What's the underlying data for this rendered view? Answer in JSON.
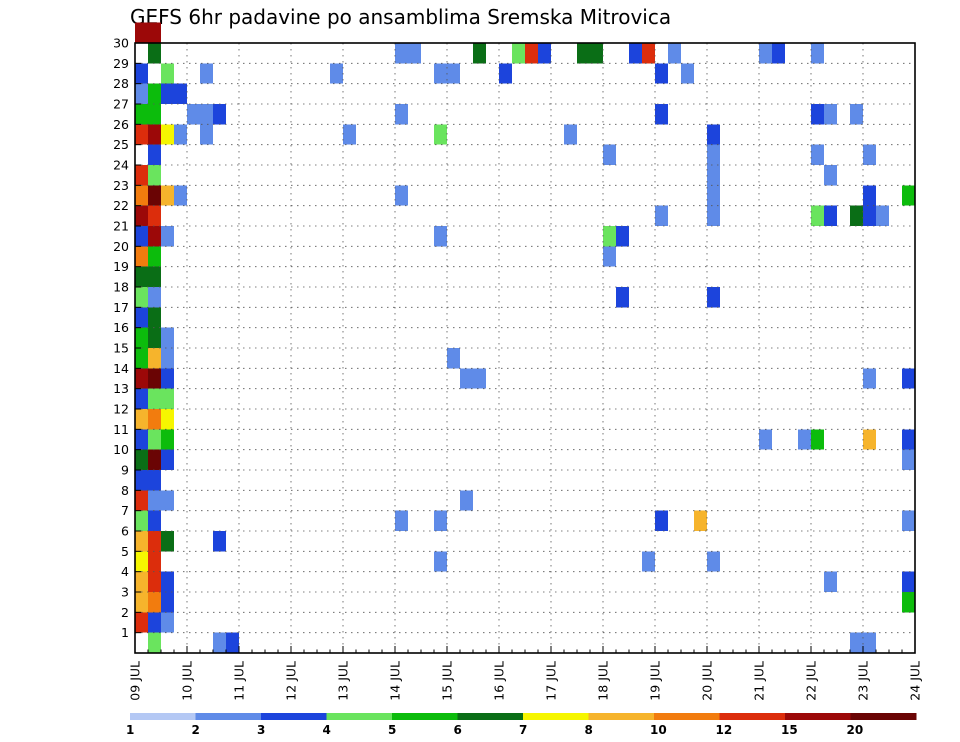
{
  "chart_data": {
    "type": "heatmap",
    "title": "GEFS 6hr padavine po ansamblima Sremska Mitrovica",
    "xlabel": "",
    "ylabel": "",
    "x_tick_labels": [
      "09 JUL",
      "10 JUL",
      "11 JUL",
      "12 JUL",
      "13 JUL",
      "14 JUL",
      "15 JUL",
      "16 JUL",
      "17 JUL",
      "18 JUL",
      "19 JUL",
      "20 JUL",
      "21 JUL",
      "22 JUL",
      "23 JUL",
      "24 JUL"
    ],
    "y_tick_labels": [
      "1",
      "2",
      "3",
      "4",
      "5",
      "6",
      "7",
      "8",
      "9",
      "10",
      "11",
      "12",
      "13",
      "14",
      "15",
      "16",
      "17",
      "18",
      "19",
      "20",
      "21",
      "22",
      "23",
      "24",
      "25",
      "26",
      "27",
      "28",
      "29",
      "30"
    ],
    "x_unit": "6-hour step from 09 JUL 00Z",
    "y_unit": "ensemble member",
    "xlim": [
      0,
      60
    ],
    "ylim": [
      0,
      30
    ],
    "grid": true,
    "colorbar": {
      "labels": [
        "1",
        "2",
        "3",
        "4",
        "5",
        "6",
        "7",
        "8",
        "10",
        "12",
        "15",
        "20"
      ],
      "colors": [
        "#b4c8f4",
        "#5f8be8",
        "#1c44dc",
        "#6ae45e",
        "#0cbc0c",
        "#0a6e16",
        "#f6f600",
        "#f6b42c",
        "#f27c0e",
        "#dc2d0c",
        "#9c0808",
        "#6a0404"
      ]
    },
    "cells": [
      [
        0,
        30,
        10
      ],
      [
        1,
        30,
        10
      ],
      [
        1,
        29,
        5
      ],
      [
        20,
        29,
        1
      ],
      [
        21,
        29,
        1
      ],
      [
        26,
        29,
        5
      ],
      [
        29,
        29,
        3
      ],
      [
        30,
        29,
        9
      ],
      [
        31,
        29,
        2
      ],
      [
        34,
        29,
        5
      ],
      [
        35,
        29,
        5
      ],
      [
        38,
        29,
        2
      ],
      [
        39,
        29,
        9
      ],
      [
        41,
        29,
        1
      ],
      [
        48,
        29,
        1
      ],
      [
        49,
        29,
        2
      ],
      [
        52,
        29,
        1
      ],
      [
        0,
        28,
        2
      ],
      [
        2,
        28,
        3
      ],
      [
        5,
        28,
        1
      ],
      [
        15,
        28,
        1
      ],
      [
        23,
        28,
        1
      ],
      [
        24,
        28,
        1
      ],
      [
        28,
        28,
        2
      ],
      [
        40,
        28,
        2
      ],
      [
        42,
        28,
        1
      ],
      [
        0,
        27,
        1
      ],
      [
        1,
        27,
        4
      ],
      [
        2,
        27,
        2
      ],
      [
        3,
        27,
        2
      ],
      [
        0,
        26,
        4
      ],
      [
        1,
        26,
        4
      ],
      [
        4,
        26,
        1
      ],
      [
        5,
        26,
        1
      ],
      [
        6,
        26,
        2
      ],
      [
        20,
        26,
        1
      ],
      [
        40,
        26,
        2
      ],
      [
        52,
        26,
        2
      ],
      [
        53,
        26,
        1
      ],
      [
        55,
        26,
        1
      ],
      [
        0,
        25,
        9
      ],
      [
        1,
        25,
        10
      ],
      [
        2,
        25,
        6
      ],
      [
        3,
        25,
        1
      ],
      [
        5,
        25,
        1
      ],
      [
        16,
        25,
        1
      ],
      [
        23,
        25,
        3
      ],
      [
        33,
        25,
        1
      ],
      [
        44,
        25,
        2
      ],
      [
        1,
        24,
        2
      ],
      [
        36,
        24,
        1
      ],
      [
        44,
        24,
        1
      ],
      [
        52,
        24,
        1
      ],
      [
        56,
        24,
        1
      ],
      [
        0,
        23,
        9
      ],
      [
        1,
        23,
        3
      ],
      [
        44,
        23,
        1
      ],
      [
        53,
        23,
        1
      ],
      [
        0,
        22,
        8
      ],
      [
        1,
        22,
        11
      ],
      [
        2,
        22,
        7
      ],
      [
        3,
        22,
        1
      ],
      [
        20,
        22,
        1
      ],
      [
        44,
        22,
        1
      ],
      [
        56,
        22,
        2
      ],
      [
        59,
        22,
        4
      ],
      [
        0,
        21,
        10
      ],
      [
        1,
        21,
        9
      ],
      [
        40,
        21,
        1
      ],
      [
        44,
        21,
        1
      ],
      [
        52,
        21,
        3
      ],
      [
        53,
        21,
        2
      ],
      [
        55,
        21,
        5
      ],
      [
        56,
        21,
        2
      ],
      [
        57,
        21,
        1
      ],
      [
        0,
        20,
        2
      ],
      [
        1,
        20,
        10
      ],
      [
        2,
        20,
        1
      ],
      [
        23,
        20,
        1
      ],
      [
        36,
        20,
        3
      ],
      [
        37,
        20,
        2
      ],
      [
        0,
        19,
        8
      ],
      [
        1,
        19,
        4
      ],
      [
        36,
        19,
        1
      ],
      [
        0,
        18,
        5
      ],
      [
        1,
        18,
        5
      ],
      [
        0,
        17,
        3
      ],
      [
        1,
        17,
        1
      ],
      [
        37,
        17,
        2
      ],
      [
        44,
        17,
        2
      ],
      [
        0,
        16,
        2
      ],
      [
        1,
        16,
        5
      ],
      [
        0,
        15,
        4
      ],
      [
        1,
        15,
        5
      ],
      [
        2,
        15,
        1
      ],
      [
        0,
        14,
        4
      ],
      [
        1,
        14,
        7
      ],
      [
        2,
        14,
        1
      ],
      [
        24,
        14,
        1
      ],
      [
        0,
        13,
        10
      ],
      [
        1,
        13,
        11
      ],
      [
        2,
        13,
        2
      ],
      [
        25,
        13,
        1
      ],
      [
        26,
        13,
        1
      ],
      [
        56,
        13,
        1
      ],
      [
        59,
        13,
        2
      ],
      [
        0,
        12,
        2
      ],
      [
        1,
        12,
        3
      ],
      [
        2,
        12,
        3
      ],
      [
        0,
        11,
        7
      ],
      [
        1,
        11,
        8
      ],
      [
        2,
        11,
        6
      ],
      [
        0,
        10,
        2
      ],
      [
        1,
        10,
        3
      ],
      [
        2,
        10,
        4
      ],
      [
        48,
        10,
        1
      ],
      [
        51,
        10,
        1
      ],
      [
        52,
        10,
        4
      ],
      [
        56,
        10,
        7
      ],
      [
        59,
        10,
        2
      ],
      [
        0,
        9,
        5
      ],
      [
        1,
        9,
        11
      ],
      [
        2,
        9,
        2
      ],
      [
        59,
        9,
        1
      ],
      [
        0,
        8,
        2
      ],
      [
        1,
        8,
        2
      ],
      [
        0,
        7,
        9
      ],
      [
        1,
        7,
        1
      ],
      [
        2,
        7,
        1
      ],
      [
        25,
        7,
        1
      ],
      [
        0,
        6,
        3
      ],
      [
        1,
        6,
        2
      ],
      [
        20,
        6,
        1
      ],
      [
        23,
        6,
        1
      ],
      [
        40,
        6,
        2
      ],
      [
        43,
        6,
        7
      ],
      [
        59,
        6,
        1
      ],
      [
        0,
        5,
        7
      ],
      [
        1,
        5,
        9
      ],
      [
        2,
        5,
        5
      ],
      [
        6,
        5,
        2
      ],
      [
        0,
        4,
        6
      ],
      [
        1,
        4,
        9
      ],
      [
        23,
        4,
        1
      ],
      [
        39,
        4,
        1
      ],
      [
        44,
        4,
        1
      ],
      [
        0,
        3,
        7
      ],
      [
        1,
        3,
        9
      ],
      [
        2,
        3,
        2
      ],
      [
        53,
        3,
        1
      ],
      [
        59,
        3,
        2
      ],
      [
        0,
        2,
        7
      ],
      [
        1,
        2,
        8
      ],
      [
        2,
        2,
        2
      ],
      [
        59,
        2,
        4
      ],
      [
        0,
        1,
        9
      ],
      [
        1,
        1,
        2
      ],
      [
        2,
        1,
        1
      ],
      [
        1,
        0,
        3
      ],
      [
        6,
        0,
        1
      ],
      [
        7,
        0,
        2
      ],
      [
        55,
        0,
        1
      ],
      [
        56,
        0,
        1
      ]
    ]
  }
}
